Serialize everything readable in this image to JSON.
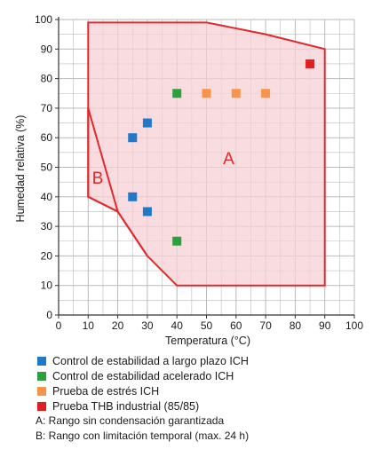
{
  "chart_data": {
    "type": "scatter",
    "xlabel": "Temperatura (°C)",
    "ylabel": "Humedad relativa (%)",
    "xlim": [
      0,
      100
    ],
    "ylim": [
      0,
      100
    ],
    "x_ticks": [
      "0",
      "10",
      "20",
      "30",
      "40",
      "50",
      "60",
      "70",
      "80",
      "90",
      "100"
    ],
    "y_ticks": [
      "0",
      "10",
      "20",
      "30",
      "40",
      "50",
      "60",
      "70",
      "80",
      "90",
      "100"
    ],
    "grid": true,
    "colors": {
      "grid": "#b9b9b9",
      "axis": "#333333",
      "region_outline": "#e2282b",
      "region_fill": "#f7d0d6"
    },
    "regions": [
      {
        "label": "A",
        "polygon": [
          [
            10,
            99
          ],
          [
            50,
            99
          ],
          [
            70,
            95
          ],
          [
            90,
            90
          ],
          [
            90,
            10
          ],
          [
            40,
            10
          ],
          [
            30,
            20
          ],
          [
            20,
            35
          ],
          [
            10,
            40
          ]
        ]
      },
      {
        "label": "B",
        "polygon": [
          [
            10,
            70
          ],
          [
            20,
            35
          ],
          [
            30,
            20
          ],
          [
            20,
            35
          ],
          [
            10,
            40
          ]
        ]
      }
    ],
    "series": [
      {
        "name": "Control de estabilidad a largo plazo ICH",
        "color": "#1f78c8",
        "points": [
          [
            25,
            60
          ],
          [
            30,
            65
          ],
          [
            25,
            40
          ],
          [
            30,
            35
          ]
        ]
      },
      {
        "name": "Control de estabilidad acelerado ICH",
        "color": "#2ca03c",
        "points": [
          [
            40,
            75
          ],
          [
            40,
            25
          ]
        ]
      },
      {
        "name": "Prueba de estrés ICH",
        "color": "#f7944a",
        "points": [
          [
            50,
            75
          ],
          [
            60,
            75
          ],
          [
            70,
            75
          ]
        ]
      },
      {
        "name": "Prueba THB industrial (85/85)",
        "color": "#e02020",
        "points": [
          [
            85,
            85
          ]
        ]
      }
    ],
    "legend_position": "bottom",
    "notes": [
      "A: Rango sin condensación garantizada",
      "B: Rango con limitación temporal (max. 24 h)"
    ]
  }
}
